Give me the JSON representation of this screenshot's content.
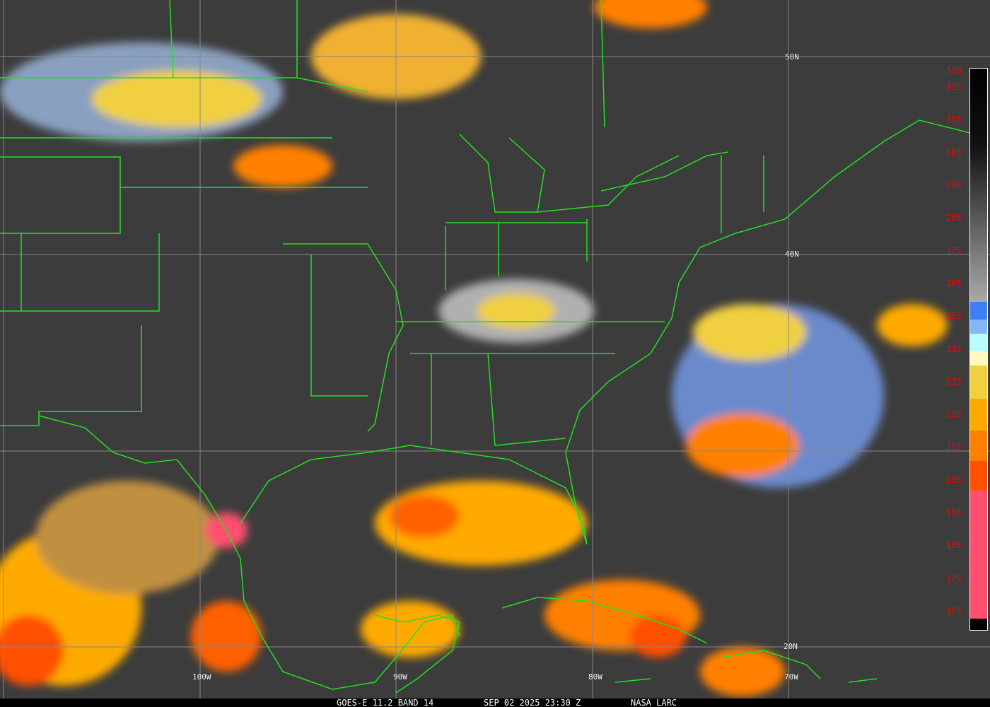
{
  "caption": {
    "product": "GOES-E 11.2 BAND 14",
    "datetime": "SEP 02 2025 23:30 Z",
    "source": "NASA LARC"
  },
  "lat_labels": [
    "50N",
    "40N",
    "20N"
  ],
  "lon_labels": [
    "100W",
    "90W",
    "80W",
    "70W"
  ],
  "colorbar": {
    "labels": [
      "330",
      "325",
      "315",
      "305",
      "295",
      "285",
      "275",
      "265",
      "255",
      "245",
      "235",
      "225",
      "215",
      "205",
      "195",
      "185",
      "175",
      "165"
    ],
    "colors": {
      "cold_black": "#000000",
      "gray": "#9a9a9a",
      "blue": "#3f7ff5",
      "light_blue": "#86b6f7",
      "cyan": "#b8fcff",
      "cream": "#fff8c0",
      "yellow": "#f0d040",
      "amber": "#ffaa00",
      "orange": "#ff8000",
      "red_orange": "#ff5000",
      "pink": "#ff5070"
    }
  },
  "border_color": "#22e022"
}
